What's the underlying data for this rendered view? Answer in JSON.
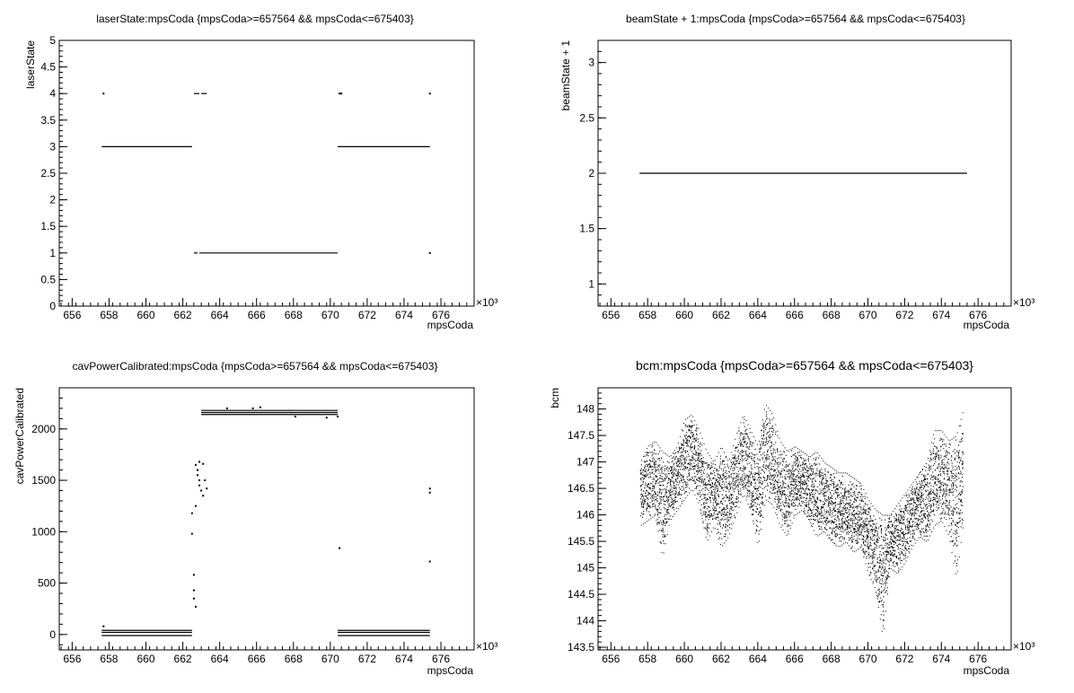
{
  "chart_data": [
    {
      "type": "scatter",
      "title": "laserState:mpsCoda {mpsCoda>=657564 && mpsCoda<=675403}",
      "xlabel": "mpsCoda",
      "ylabel": "laserState",
      "x_exponent_label": "×10³",
      "xlim": [
        655.3,
        677.8
      ],
      "ylim": [
        0,
        5
      ],
      "x_ticks": [
        "656",
        "658",
        "660",
        "662",
        "664",
        "666",
        "668",
        "670",
        "672",
        "674",
        "676"
      ],
      "y_ticks": [
        "0",
        "0.5",
        "1",
        "1.5",
        "2",
        "2.5",
        "3",
        "3.5",
        "4",
        "4.5",
        "5"
      ],
      "segments": [
        {
          "x0": 657.6,
          "x1": 662.5,
          "y": 3
        },
        {
          "x0": 662.6,
          "x1": 662.9,
          "y": 4
        },
        {
          "x0": 663.0,
          "x1": 663.3,
          "y": 4
        },
        {
          "x0": 662.6,
          "x1": 662.8,
          "y": 1
        },
        {
          "x0": 662.9,
          "x1": 670.4,
          "y": 1
        },
        {
          "x0": 670.4,
          "x1": 675.4,
          "y": 3
        }
      ],
      "points": [
        [
          657.7,
          4
        ],
        [
          670.5,
          4
        ],
        [
          670.6,
          4
        ],
        [
          675.4,
          4
        ],
        [
          675.4,
          1
        ]
      ]
    },
    {
      "type": "scatter",
      "title": "beamState + 1:mpsCoda {mpsCoda>=657564 && mpsCoda<=675403}",
      "xlabel": "mpsCoda",
      "ylabel": "beamState + 1",
      "x_exponent_label": "×10³",
      "xlim": [
        655.3,
        677.8
      ],
      "ylim": [
        0.8,
        3.2
      ],
      "x_ticks": [
        "656",
        "658",
        "660",
        "662",
        "664",
        "666",
        "668",
        "670",
        "672",
        "674",
        "676"
      ],
      "y_ticks": [
        "1",
        "1.5",
        "2",
        "2.5",
        "3"
      ],
      "segments": [
        {
          "x0": 657.56,
          "x1": 675.4,
          "y": 2
        }
      ],
      "points": []
    },
    {
      "type": "scatter",
      "title": "cavPowerCalibrated:mpsCoda {mpsCoda>=657564 && mpsCoda<=675403}",
      "xlabel": "mpsCoda",
      "ylabel": "cavPowerCalibrated",
      "x_exponent_label": "×10³",
      "xlim": [
        655.3,
        677.8
      ],
      "ylim": [
        -150,
        2400
      ],
      "x_ticks": [
        "656",
        "658",
        "660",
        "662",
        "664",
        "666",
        "668",
        "670",
        "672",
        "674",
        "676"
      ],
      "y_ticks": [
        "0",
        "500",
        "1000",
        "1500",
        "2000"
      ],
      "segments": [
        {
          "x0": 657.6,
          "x1": 662.5,
          "y": 40
        },
        {
          "x0": 657.6,
          "x1": 662.5,
          "y": 20
        },
        {
          "x0": 657.6,
          "x1": 662.5,
          "y": -10
        },
        {
          "x0": 663.0,
          "x1": 670.4,
          "y": 2180
        },
        {
          "x0": 663.0,
          "x1": 670.4,
          "y": 2160
        },
        {
          "x0": 663.0,
          "x1": 670.4,
          "y": 2140
        },
        {
          "x0": 670.4,
          "x1": 675.4,
          "y": 40
        },
        {
          "x0": 670.4,
          "x1": 675.4,
          "y": 20
        },
        {
          "x0": 670.4,
          "x1": 675.4,
          "y": -10
        }
      ],
      "points": [
        [
          657.7,
          80
        ],
        [
          662.5,
          1180
        ],
        [
          662.5,
          980
        ],
        [
          662.6,
          580
        ],
        [
          662.6,
          430
        ],
        [
          662.6,
          350
        ],
        [
          662.7,
          270
        ],
        [
          662.7,
          1650
        ],
        [
          662.8,
          1600
        ],
        [
          662.8,
          1550
        ],
        [
          662.9,
          1500
        ],
        [
          662.9,
          1450
        ],
        [
          663.0,
          1400
        ],
        [
          663.1,
          1350
        ],
        [
          662.7,
          1250
        ],
        [
          662.9,
          1680
        ],
        [
          663.1,
          1660
        ],
        [
          663.2,
          1500
        ],
        [
          663.3,
          1420
        ],
        [
          664.4,
          2200
        ],
        [
          665.8,
          2200
        ],
        [
          666.2,
          2210
        ],
        [
          668.1,
          2120
        ],
        [
          669.8,
          2110
        ],
        [
          670.4,
          2120
        ],
        [
          670.5,
          840
        ],
        [
          675.4,
          1420
        ],
        [
          675.4,
          1380
        ],
        [
          675.4,
          710
        ]
      ]
    },
    {
      "type": "scatter",
      "title": "bcm:mpsCoda {mpsCoda>=657564 && mpsCoda<=675403}",
      "xlabel": "mpsCoda",
      "ylabel": "bcm",
      "x_exponent_label": "×10³",
      "xlim": [
        655.3,
        677.8
      ],
      "ylim": [
        143.45,
        148.4
      ],
      "x_ticks": [
        "656",
        "658",
        "660",
        "662",
        "664",
        "666",
        "668",
        "670",
        "672",
        "674",
        "676"
      ],
      "y_ticks": [
        "143.5",
        "144",
        "144.5",
        "145",
        "145.5",
        "146",
        "146.5",
        "147",
        "147.5",
        "148"
      ],
      "band_description": "dense vertical scatter of bcm values between roughly 145 and 148",
      "envelope": [
        [
          657.6,
          145.8,
          147.0
        ],
        [
          658.0,
          145.9,
          147.3
        ],
        [
          658.4,
          146.0,
          147.4
        ],
        [
          658.8,
          145.2,
          147.2
        ],
        [
          659.2,
          145.9,
          147.1
        ],
        [
          659.6,
          146.1,
          147.3
        ],
        [
          660.0,
          146.3,
          147.8
        ],
        [
          660.4,
          146.5,
          147.9
        ],
        [
          660.8,
          146.2,
          147.6
        ],
        [
          661.2,
          145.5,
          147.2
        ],
        [
          661.6,
          145.8,
          147.0
        ],
        [
          662.0,
          145.4,
          147.3
        ],
        [
          662.4,
          145.6,
          147.0
        ],
        [
          662.8,
          146.0,
          147.5
        ],
        [
          663.2,
          146.4,
          147.9
        ],
        [
          663.6,
          146.1,
          147.6
        ],
        [
          664.0,
          145.4,
          147.3
        ],
        [
          664.4,
          146.3,
          148.1
        ],
        [
          664.8,
          146.2,
          147.9
        ],
        [
          665.2,
          145.8,
          147.4
        ],
        [
          665.6,
          145.6,
          147.2
        ],
        [
          666.0,
          146.0,
          147.3
        ],
        [
          666.4,
          146.1,
          147.2
        ],
        [
          666.8,
          145.9,
          147.1
        ],
        [
          667.2,
          145.6,
          147.2
        ],
        [
          667.6,
          145.7,
          147.0
        ],
        [
          668.0,
          145.5,
          146.9
        ],
        [
          668.4,
          145.4,
          146.8
        ],
        [
          668.8,
          145.5,
          146.8
        ],
        [
          669.2,
          145.3,
          146.7
        ],
        [
          669.6,
          145.4,
          146.6
        ],
        [
          670.0,
          144.9,
          146.3
        ],
        [
          670.4,
          144.6,
          146.1
        ],
        [
          670.8,
          143.7,
          146.0
        ],
        [
          671.2,
          145.0,
          146.0
        ],
        [
          671.6,
          144.9,
          146.2
        ],
        [
          672.0,
          145.1,
          146.4
        ],
        [
          672.4,
          145.4,
          146.6
        ],
        [
          672.8,
          145.6,
          146.8
        ],
        [
          673.2,
          145.5,
          147.0
        ],
        [
          673.6,
          145.8,
          147.6
        ],
        [
          674.0,
          145.9,
          147.6
        ],
        [
          674.4,
          145.6,
          147.4
        ],
        [
          674.8,
          144.8,
          147.5
        ],
        [
          675.2,
          145.9,
          148.0
        ]
      ]
    }
  ]
}
